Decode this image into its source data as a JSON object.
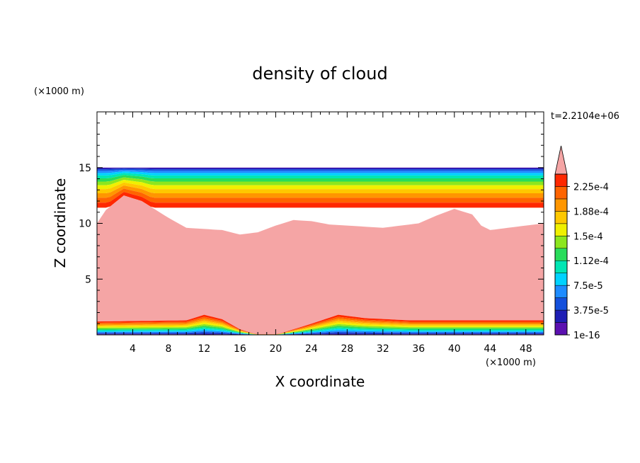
{
  "chart_data": {
    "type": "heatmap",
    "title": "density of cloud",
    "xlabel": "X coordinate",
    "ylabel": "Z coordinate",
    "x_unit": "(×1000 m)",
    "y_unit": "(×1000 m)",
    "time_label": "t=2.2104e+06",
    "xlim": [
      0,
      50
    ],
    "ylim": [
      0,
      20
    ],
    "x_ticks": [
      "4",
      "8",
      "12",
      "16",
      "20",
      "24",
      "28",
      "32",
      "36",
      "40",
      "44",
      "48"
    ],
    "y_ticks": [
      "5",
      "10",
      "15"
    ],
    "colorbar": {
      "labels": [
        "1e-16",
        "3.75e-5",
        "7.5e-5",
        "1.12e-4",
        "1.5e-4",
        "1.88e-4",
        "2.25e-4"
      ],
      "colors": [
        "#5b10b0",
        "#1e1eb4",
        "#1450dc",
        "#1e8cff",
        "#00d2ff",
        "#00e6b4",
        "#28dc5a",
        "#8ce61e",
        "#f0f000",
        "#ffc800",
        "#ff9600",
        "#ff6400",
        "#ff2800",
        "#f5a5a5"
      ],
      "over_color": "#f5a5a5"
    },
    "cloud_top_km": 15,
    "cloud_upper_base_km": [
      [
        0,
        10.0
      ],
      [
        1,
        11.2
      ],
      [
        3,
        12.5
      ],
      [
        5,
        12.0
      ],
      [
        8,
        10.5
      ],
      [
        10,
        9.6
      ],
      [
        12,
        9.5
      ],
      [
        14,
        9.4
      ],
      [
        16,
        9.0
      ],
      [
        18,
        9.2
      ],
      [
        20,
        9.8
      ],
      [
        22,
        10.3
      ],
      [
        24,
        10.2
      ],
      [
        26,
        9.9
      ],
      [
        28,
        9.8
      ],
      [
        30,
        9.7
      ],
      [
        32,
        9.6
      ],
      [
        34,
        9.8
      ],
      [
        36,
        10.0
      ],
      [
        38,
        10.7
      ],
      [
        40,
        11.3
      ],
      [
        42,
        10.8
      ],
      [
        43,
        9.8
      ],
      [
        44,
        9.4
      ],
      [
        46,
        9.6
      ],
      [
        48,
        9.8
      ],
      [
        50,
        10.0
      ]
    ],
    "cloud_lower_top_km": [
      [
        0,
        1.2
      ],
      [
        10,
        1.3
      ],
      [
        12,
        1.8
      ],
      [
        14,
        1.4
      ],
      [
        16,
        0.5
      ],
      [
        18,
        0.0
      ],
      [
        20,
        0.0
      ],
      [
        22,
        0.5
      ],
      [
        24,
        1.0
      ],
      [
        27,
        1.8
      ],
      [
        30,
        1.5
      ],
      [
        35,
        1.3
      ],
      [
        50,
        1.3
      ]
    ]
  }
}
